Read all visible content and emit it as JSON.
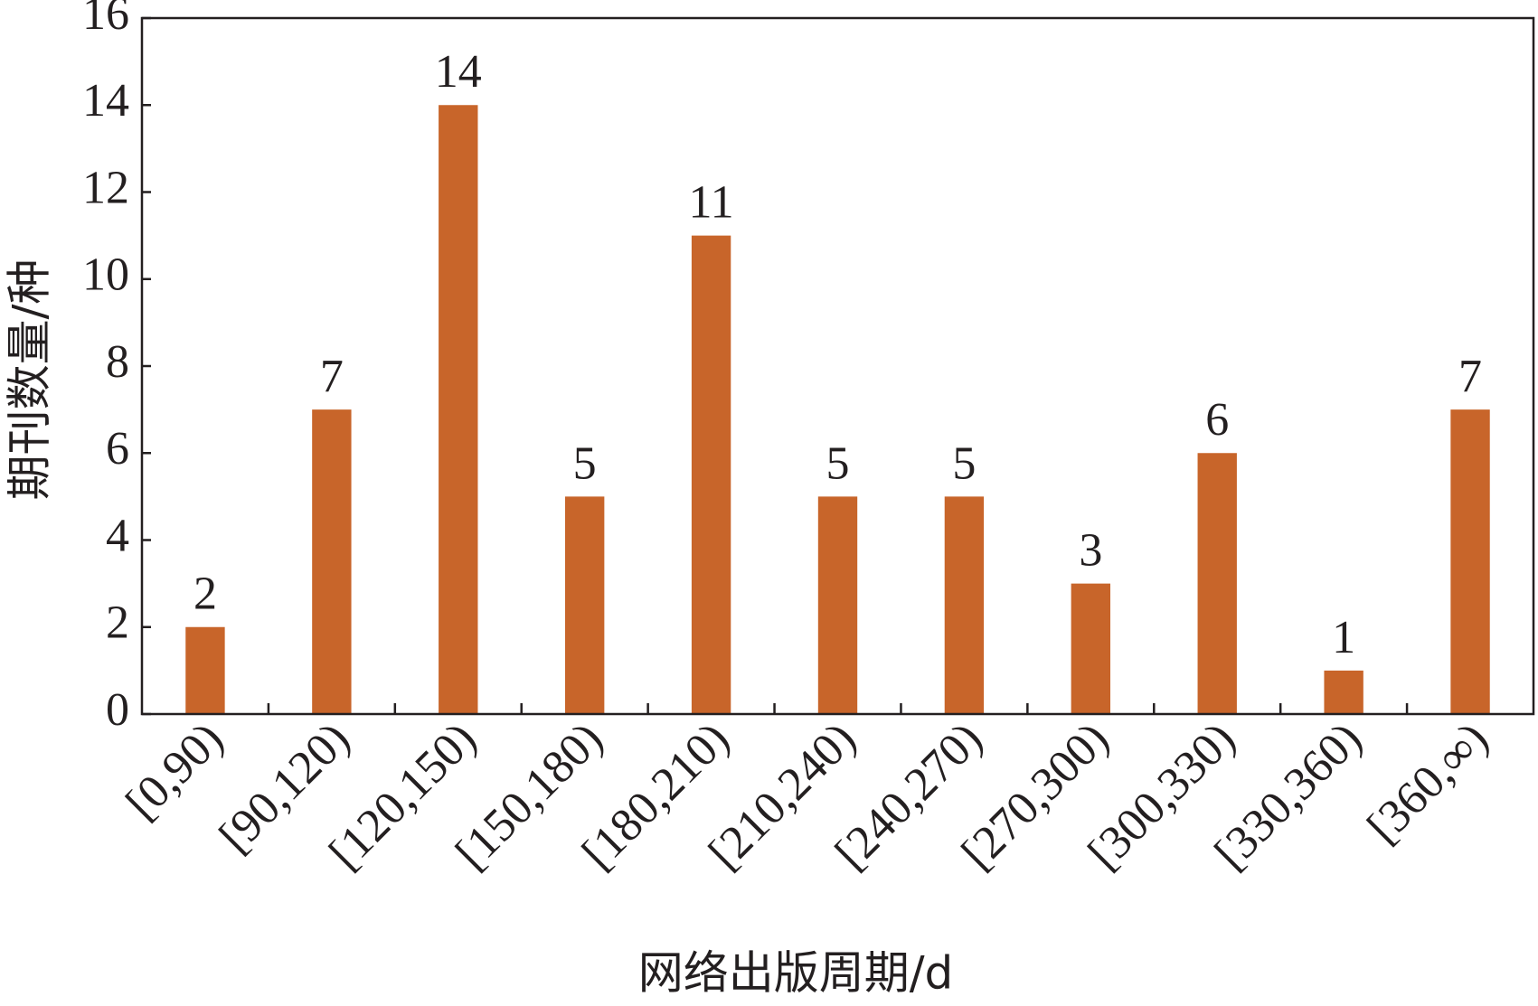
{
  "chart_data": {
    "type": "bar",
    "x_label": "网络出版周期/d",
    "y_label": "期刊数量/种",
    "categories": [
      "[0,90)",
      "[90,120)",
      "[120,150)",
      "[150,180)",
      "[180,210)",
      "[210,240)",
      "[240,270)",
      "[270,300)",
      "[300,330)",
      "[330,360)",
      "[360,∞)"
    ],
    "values": [
      2,
      7,
      14,
      5,
      11,
      5,
      5,
      3,
      6,
      1,
      7
    ],
    "color": "#c8652a",
    "ylim": [
      0,
      16
    ],
    "yticks": [
      0,
      2,
      4,
      6,
      8,
      10,
      12,
      14,
      16
    ],
    "grid": false
  }
}
